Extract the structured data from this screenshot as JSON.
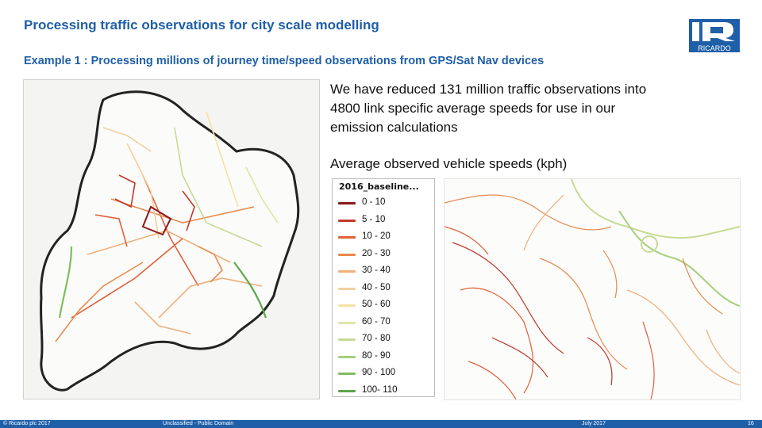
{
  "slide": {
    "title": "Processing traffic observations for city scale modelling",
    "subtitle": "Example 1 : Processing millions of journey time/speed observations from GPS/Sat Nav devices",
    "logo_text": "RICARDO",
    "body_text": "We have reduced 131 million traffic observations into 4800 link specific average speeds for use in our emission calculations",
    "legend_caption": "Average observed vehicle speeds (kph)"
  },
  "legend": {
    "title": "2016_baseline...",
    "items": [
      {
        "label": "0 - 10",
        "color": "#8b1a1a"
      },
      {
        "label": "5 - 10",
        "color": "#c0392b"
      },
      {
        "label": "10 - 20",
        "color": "#e0603a"
      },
      {
        "label": "20 - 30",
        "color": "#e88a4e"
      },
      {
        "label": "30 - 40",
        "color": "#efb07a"
      },
      {
        "label": "40 - 50",
        "color": "#f3cf9f"
      },
      {
        "label": "50 - 60",
        "color": "#f2e2a6"
      },
      {
        "label": "60 - 70",
        "color": "#dfe6a6"
      },
      {
        "label": "70 - 80",
        "color": "#c6dc93"
      },
      {
        "label": "80 - 90",
        "color": "#a6cf7c"
      },
      {
        "label": "90 - 100",
        "color": "#7fbd5e"
      },
      {
        "label": "100- 110",
        "color": "#5ea64a"
      }
    ]
  },
  "footer": {
    "copyright": "© Ricardo plc 2017",
    "classification": "Unclassified - Public Domain",
    "date": "July 2017",
    "page": "16"
  }
}
